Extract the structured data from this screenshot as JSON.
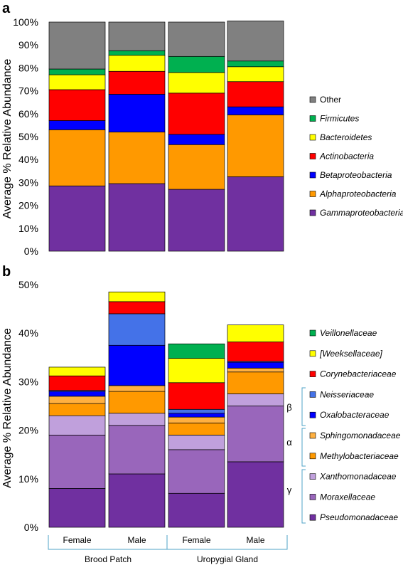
{
  "chart_data": [
    {
      "panel": "a",
      "type": "bar",
      "stacked": true,
      "categories": [
        "",
        "",
        "",
        ""
      ],
      "ylabel": "Average % Relative Abundance",
      "ylim": [
        0,
        100
      ],
      "yticks": [
        "0%",
        "10%",
        "20%",
        "30%",
        "40%",
        "50%",
        "60%",
        "70%",
        "80%",
        "90%",
        "100%"
      ],
      "series": [
        {
          "name": "Gammaproteobacteria",
          "color": "#7030a0",
          "italic": true,
          "values": [
            28.5,
            29.5,
            27,
            32.5
          ]
        },
        {
          "name": "Alphaproteobacteria",
          "color": "#ff9900",
          "italic": true,
          "values": [
            24.5,
            22.5,
            19.5,
            27
          ]
        },
        {
          "name": "Betaproteobacteria",
          "color": "#0000ff",
          "italic": true,
          "values": [
            4,
            16.5,
            4.5,
            3.5
          ]
        },
        {
          "name": "Actinobacteria",
          "color": "#ff0000",
          "italic": true,
          "values": [
            13.5,
            10,
            18,
            11
          ]
        },
        {
          "name": "Bacteroidetes",
          "color": "#ffff00",
          "italic": true,
          "values": [
            6.5,
            7,
            9,
            6.5
          ]
        },
        {
          "name": "Firmicutes",
          "color": "#00b050",
          "italic": true,
          "values": [
            2.5,
            2,
            7,
            2.5
          ]
        },
        {
          "name": "Other",
          "color": "#808080",
          "italic": false,
          "values": [
            20.5,
            12.5,
            15,
            17.5
          ]
        }
      ]
    },
    {
      "panel": "b",
      "type": "bar",
      "stacked": true,
      "categories": [
        "Female",
        "Male",
        "Female",
        "Male"
      ],
      "groups": [
        "Brood Patch",
        "Uropygial Gland"
      ],
      "ylabel": "Average % Relative Abundance",
      "ylim": [
        0,
        50
      ],
      "yticks": [
        "0%",
        "10%",
        "20%",
        "30%",
        "40%",
        "50%"
      ],
      "series": [
        {
          "name": "Pseudomonadaceae",
          "color": "#7030a0",
          "values": [
            8,
            11,
            7,
            13.5
          ]
        },
        {
          "name": "Moraxellaceae",
          "color": "#9966bb",
          "values": [
            11,
            10,
            9,
            11.5
          ]
        },
        {
          "name": "Xanthomonadaceae",
          "color": "#c0a0dc",
          "values": [
            4,
            2.5,
            3,
            2.5
          ]
        },
        {
          "name": "Methylobacteriaceae",
          "color": "#ff9900",
          "values": [
            2.5,
            4.5,
            2.5,
            4.5
          ]
        },
        {
          "name": "Sphingomonadaceae",
          "color": "#ffb040",
          "values": [
            1.5,
            1.2,
            1.2,
            0.8
          ]
        },
        {
          "name": "Oxalobacteraceae",
          "color": "#0000ff",
          "values": [
            1,
            8.3,
            0.8,
            1.2
          ]
        },
        {
          "name": "Neisseriaceae",
          "color": "#4472e8",
          "values": [
            0.2,
            6.5,
            0.8,
            0.2
          ]
        },
        {
          "name": "Corynebacteriaceae",
          "color": "#ff0000",
          "values": [
            3,
            2.5,
            5.5,
            4
          ]
        },
        {
          "name": "[Weeksellaceae]",
          "color": "#ffff00",
          "values": [
            1.8,
            2,
            5,
            3.5
          ]
        },
        {
          "name": "Veillonellaceae",
          "color": "#00b050",
          "values": [
            0,
            0,
            3,
            0
          ]
        }
      ],
      "brackets": [
        {
          "label": "β",
          "series": [
            "Neisseriaceae",
            "Oxalobacteraceae"
          ]
        },
        {
          "label": "α",
          "series": [
            "Sphingomonadaceae",
            "Methylobacteriaceae"
          ]
        },
        {
          "label": "γ",
          "series": [
            "Xanthomonadaceae",
            "Moraxellaceae",
            "Pseudomonadaceae"
          ]
        }
      ]
    }
  ]
}
